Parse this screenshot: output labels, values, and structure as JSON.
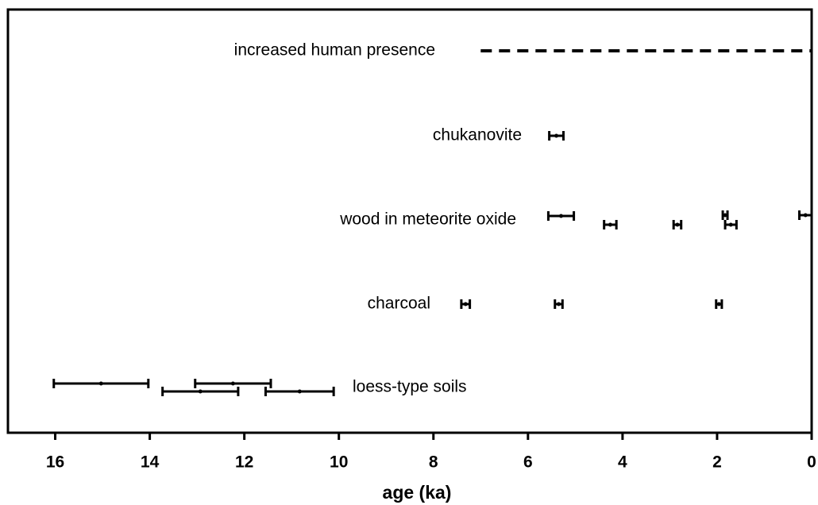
{
  "chart_data": {
    "type": "errorbar",
    "xlabel": "age (ka)",
    "xlim": [
      17,
      0
    ],
    "xticks": [
      16,
      14,
      12,
      10,
      8,
      6,
      4,
      2,
      0
    ],
    "color": "#000000",
    "series": [
      {
        "name": "increased human presence",
        "range": [
          7,
          0
        ],
        "style": "dashed"
      },
      {
        "name": "chukanovite",
        "values": [
          5.4
        ],
        "errors": [
          0.15
        ]
      },
      {
        "name": "wood in meteorite oxide",
        "values": [
          5.3,
          4.26,
          2.84,
          1.83,
          1.71,
          0.13
        ],
        "errors": [
          0.27,
          0.13,
          0.08,
          0.05,
          0.12,
          0.13
        ]
      },
      {
        "name": "charcoal",
        "values": [
          7.32,
          5.35,
          1.96
        ],
        "errors": [
          0.09,
          0.08,
          0.06
        ]
      },
      {
        "name": "loess-type soils",
        "values": [
          15.03,
          12.93,
          12.24,
          10.83
        ],
        "errors": [
          1.0,
          0.8,
          0.8,
          0.72
        ]
      }
    ]
  }
}
